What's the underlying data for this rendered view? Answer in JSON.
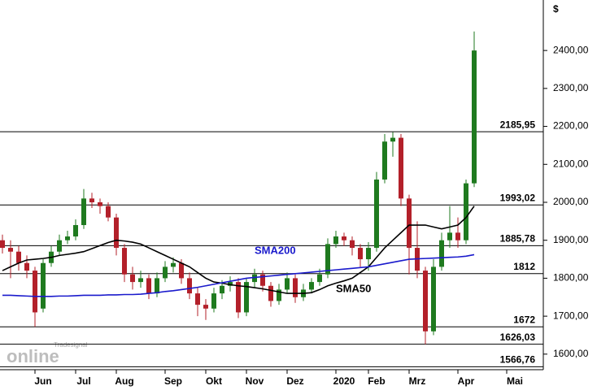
{
  "chart_data": {
    "type": "candlestick",
    "unit": "$",
    "logo": {
      "small": "Tradesignal",
      "large": "online"
    },
    "categories": [
      null,
      null,
      null,
      null,
      null,
      "Jun",
      null,
      null,
      null,
      null,
      "Jul",
      null,
      null,
      null,
      null,
      "Aug",
      null,
      null,
      null,
      null,
      null,
      "Sep",
      null,
      null,
      null,
      null,
      "Okt",
      null,
      null,
      null,
      null,
      "Nov",
      null,
      null,
      null,
      null,
      "Dez",
      null,
      null,
      null,
      null,
      null,
      "2020",
      null,
      null,
      null,
      "Feb",
      null,
      null,
      null,
      null,
      "Mrz",
      null,
      null,
      null,
      null,
      null,
      "Apr",
      null,
      null,
      null,
      null,
      null,
      "Mai"
    ],
    "open": [
      1900,
      1880,
      1870,
      1840,
      1820,
      1720,
      1840,
      1870,
      1900,
      1910,
      1940,
      2010,
      2000,
      1990,
      1960,
      1880,
      1810,
      1790,
      1800,
      1760,
      1800,
      1830,
      1840,
      1800,
      1760,
      1730,
      1720,
      1760,
      1780,
      1790,
      1710,
      1790,
      1810,
      1780,
      1740,
      1770,
      1800,
      1750,
      1770,
      1790,
      1810,
      1890,
      1910,
      1900,
      1880,
      1850,
      1880,
      2060,
      2160,
      2170,
      2010,
      1880,
      1820,
      1660,
      1830,
      1900,
      1920,
      1900,
      2050,
      null,
      null,
      null,
      null,
      null
    ],
    "high": [
      1915,
      1900,
      1885,
      1860,
      1830,
      1850,
      1885,
      1915,
      1925,
      1955,
      2035,
      2025,
      2010,
      2000,
      1970,
      1890,
      1830,
      1820,
      1810,
      1815,
      1845,
      1855,
      1850,
      1815,
      1775,
      1745,
      1775,
      1795,
      1805,
      1800,
      1800,
      1825,
      1820,
      1790,
      1785,
      1815,
      1810,
      1785,
      1800,
      1825,
      1905,
      1925,
      1920,
      1910,
      1890,
      1895,
      2080,
      2180,
      2185,
      2180,
      2020,
      1950,
      1830,
      1850,
      1920,
      1990,
      1960,
      2060,
      2450,
      null,
      null,
      null,
      null,
      null
    ],
    "low": [
      1865,
      1800,
      1820,
      1800,
      1672,
      1710,
      1830,
      1860,
      1890,
      1900,
      1930,
      1985,
      1970,
      1950,
      1860,
      1790,
      1770,
      1775,
      1745,
      1750,
      1790,
      1815,
      1785,
      1745,
      1700,
      1690,
      1710,
      1745,
      1765,
      1695,
      1700,
      1775,
      1765,
      1725,
      1730,
      1760,
      1735,
      1740,
      1760,
      1780,
      1800,
      1880,
      1885,
      1860,
      1830,
      1820,
      1870,
      2050,
      2120,
      1990,
      1810,
      1800,
      1626,
      1650,
      1820,
      1880,
      1880,
      1890,
      2040,
      null,
      null,
      null,
      null,
      null
    ],
    "close": [
      1880,
      1870,
      1840,
      1820,
      1710,
      1840,
      1870,
      1900,
      1910,
      1940,
      2010,
      2000,
      1990,
      1960,
      1880,
      1810,
      1790,
      1800,
      1760,
      1800,
      1830,
      1840,
      1800,
      1760,
      1730,
      1720,
      1760,
      1780,
      1790,
      1710,
      1790,
      1810,
      1780,
      1740,
      1770,
      1800,
      1750,
      1770,
      1790,
      1810,
      1890,
      1910,
      1900,
      1880,
      1850,
      1880,
      2060,
      2160,
      2170,
      2010,
      1880,
      1820,
      1660,
      1830,
      1900,
      1920,
      1900,
      2050,
      2400,
      null,
      null,
      null,
      null,
      null
    ],
    "up_color": "#1f7a1f",
    "down_color": "#b3202a",
    "series": [
      {
        "name": "SMA50",
        "color": "#000000",
        "values": [
          1820,
          1830,
          1840,
          1848,
          1850,
          1852,
          1855,
          1860,
          1863,
          1866,
          1870,
          1878,
          1886,
          1894,
          1900,
          1898,
          1895,
          1890,
          1880,
          1870,
          1860,
          1850,
          1840,
          1830,
          1815,
          1800,
          1790,
          1787,
          1783,
          1780,
          1778,
          1775,
          1772,
          1768,
          1764,
          1760,
          1760,
          1760,
          1762,
          1770,
          1780,
          1787,
          1793,
          1800,
          1815,
          1830,
          1855,
          1880,
          1900,
          1920,
          1940,
          1940,
          1940,
          1935,
          1930,
          1935,
          1940,
          1960,
          1990,
          null,
          null,
          null,
          null,
          null
        ]
      },
      {
        "name": "SMA200",
        "color": "#1a1acc",
        "values": [
          1755,
          1755,
          1754,
          1753,
          1752,
          1752,
          1752,
          1753,
          1753,
          1754,
          1755,
          1755,
          1755,
          1756,
          1756,
          1757,
          1757,
          1758,
          1760,
          1762,
          1765,
          1767,
          1770,
          1773,
          1776,
          1780,
          1784,
          1788,
          1792,
          1796,
          1800,
          1802,
          1804,
          1806,
          1808,
          1810,
          1812,
          1814,
          1816,
          1818,
          1820,
          1822,
          1824,
          1826,
          1828,
          1830,
          1834,
          1838,
          1842,
          1846,
          1850,
          1851,
          1852,
          1853,
          1854,
          1855,
          1856,
          1858,
          1862,
          null,
          null,
          null,
          null,
          null
        ]
      }
    ],
    "levels": [
      {
        "value": 2185.95,
        "label": "2185,95"
      },
      {
        "value": 1993.02,
        "label": "1993,02"
      },
      {
        "value": 1885.78,
        "label": "1885,78"
      },
      1812,
      1672,
      {
        "value": 1626.03,
        "label": "1626,03"
      },
      {
        "value": 1566.76,
        "label": "1566,76"
      }
    ],
    "ylim": [
      1559,
      2533
    ],
    "yticks": [
      {
        "value": 1600,
        "label": "1600,00"
      },
      {
        "value": 1700,
        "label": "1700,00"
      },
      {
        "value": 1800,
        "label": "1800,00"
      },
      {
        "value": 1900,
        "label": "1900,00"
      },
      {
        "value": 2000,
        "label": "2000,00"
      },
      {
        "value": 2100,
        "label": "2100,00"
      },
      {
        "value": 2200,
        "label": "2200,00"
      },
      {
        "value": 2300,
        "label": "2300,00"
      },
      {
        "value": 2400,
        "label": "2400,00"
      }
    ]
  }
}
